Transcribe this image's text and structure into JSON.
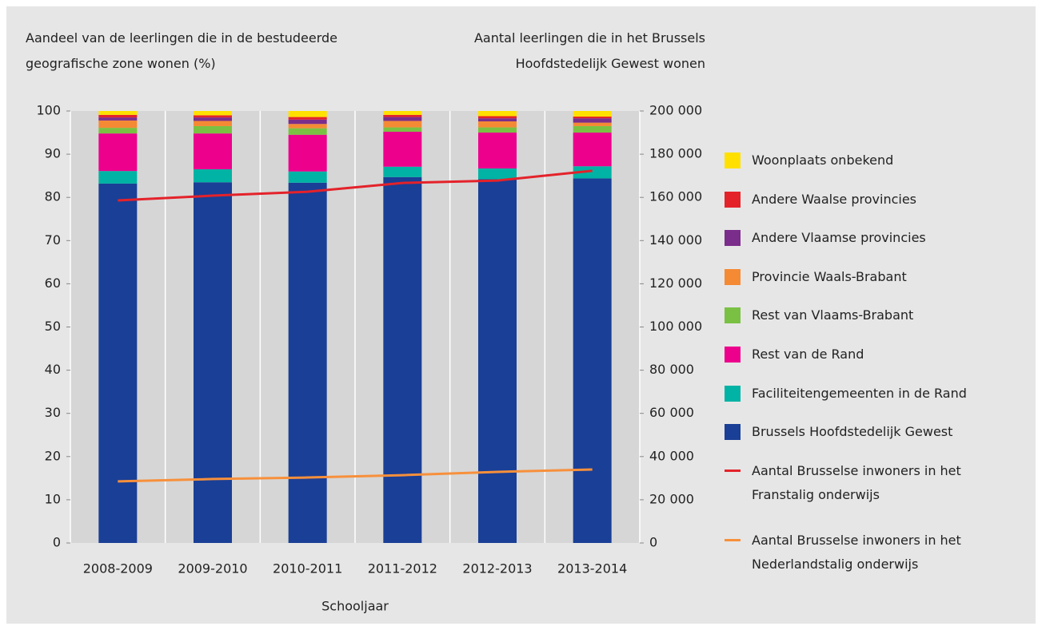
{
  "chart_data": {
    "type": "bar",
    "stacked": true,
    "y_axis_title": "Aandeel van de leerlingen die in de bestudeerde geografische zone wonen (%)",
    "y2_axis_title": "Aantal leerlingen die in het Brussels Hoofdstedelijk Gewest wonen",
    "x_axis_title": "Schooljaar",
    "categories": [
      "2008-2009",
      "2009-2010",
      "2010-2011",
      "2011-2012",
      "2012-2013",
      "2013-2014"
    ],
    "series": [
      {
        "name": "Brussels Hoofdstedelijk Gewest",
        "color": "#1a3f96",
        "values": [
          83.2,
          83.5,
          83.4,
          84.7,
          84.2,
          84.4
        ]
      },
      {
        "name": "Faciliteitengemeenten in de Rand",
        "color": "#00b3a4",
        "values": [
          2.9,
          3.0,
          2.6,
          2.4,
          2.5,
          2.8
        ]
      },
      {
        "name": "Rest van de Rand",
        "color": "#ec008c",
        "values": [
          8.7,
          8.3,
          8.5,
          8.1,
          8.3,
          7.8
        ]
      },
      {
        "name": "Rest van Vlaams-Brabant",
        "color": "#7ac143",
        "values": [
          1.3,
          1.7,
          1.5,
          1.0,
          1.2,
          1.5
        ]
      },
      {
        "name": "Provincie Waals-Brabant",
        "color": "#f58a34",
        "values": [
          1.7,
          1.2,
          1.0,
          1.5,
          1.4,
          0.8
        ]
      },
      {
        "name": "Andere Vlaamse provincies",
        "color": "#7b2d8b",
        "values": [
          0.7,
          0.8,
          1.0,
          0.9,
          0.7,
          1.0
        ]
      },
      {
        "name": "Andere Waalse provincies",
        "color": "#e4222a",
        "values": [
          0.6,
          0.5,
          0.6,
          0.5,
          0.5,
          0.4
        ]
      },
      {
        "name": "Woonplaats onbekend",
        "color": "#ffe000",
        "values": [
          0.9,
          1.0,
          1.4,
          0.9,
          1.2,
          1.3
        ]
      },
      {
        "name": "Aantal Brusselse inwoners in het Franstalig onderwijs",
        "color": "#e4222a",
        "type": "line",
        "axis": "y2",
        "values": [
          158600,
          160800,
          162600,
          166700,
          167800,
          172300
        ]
      },
      {
        "name": "Aantal Brusselse inwoners in het Nederlandstalig onderwijs",
        "color": "#f7903b",
        "type": "line",
        "axis": "y2",
        "values": [
          28500,
          29600,
          30300,
          31400,
          32900,
          34000
        ]
      }
    ],
    "ylim": [
      0,
      100
    ],
    "yticks": [
      0,
      10,
      20,
      30,
      40,
      50,
      60,
      70,
      80,
      90,
      100
    ],
    "y2lim": [
      0,
      200000
    ],
    "y2ticks": [
      {
        "value": 0,
        "label": "0"
      },
      {
        "value": 20000,
        "label": "20 000"
      },
      {
        "value": 40000,
        "label": "40 000"
      },
      {
        "value": 60000,
        "label": "60 000"
      },
      {
        "value": 80000,
        "label": "80 000"
      },
      {
        "value": 100000,
        "label": "100 000"
      },
      {
        "value": 120000,
        "label": "120 000"
      },
      {
        "value": 140000,
        "label": "140 000"
      },
      {
        "value": 160000,
        "label": "160 000"
      },
      {
        "value": 180000,
        "label": "180 000"
      },
      {
        "value": 200000,
        "label": "200 000"
      }
    ],
    "legend": "right"
  }
}
